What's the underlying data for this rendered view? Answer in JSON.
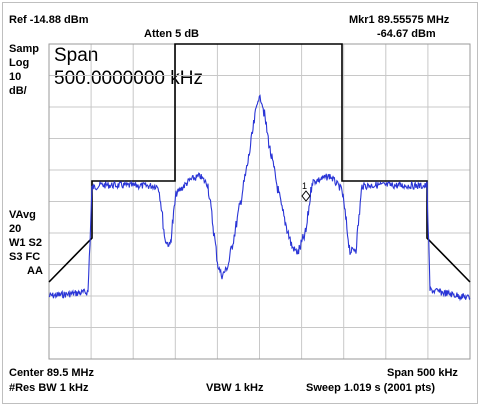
{
  "header": {
    "ref_level": "Ref -14.88 dBm",
    "atten": "Atten 5 dB",
    "marker_label": "Mkr1 89.55575 MHz",
    "marker_value": "-64.67 dBm"
  },
  "left_panel": {
    "mode": "Samp",
    "scale_type": "Log",
    "scale_value": "10",
    "scale_unit": "dB/"
  },
  "overlay": {
    "title": "Span",
    "value": "500.0000000 kHz"
  },
  "trace_panel": {
    "avg_label": "VAvg",
    "avg_count": "20",
    "w1s2": "W1  S2",
    "s3fc": "S3  FC",
    "aa": "AA"
  },
  "marker": {
    "id": "1"
  },
  "footer": {
    "center": "Center 89.5 MHz",
    "span": "Span 500 kHz",
    "rbw": "#Res BW 1 kHz",
    "vbw": "VBW 1 kHz",
    "sweep": "Sweep 1.019 s (2001 pts)"
  },
  "colors": {
    "trace": "#2a35d6",
    "mask": "#000000",
    "grid": "#c8c8c8"
  }
}
